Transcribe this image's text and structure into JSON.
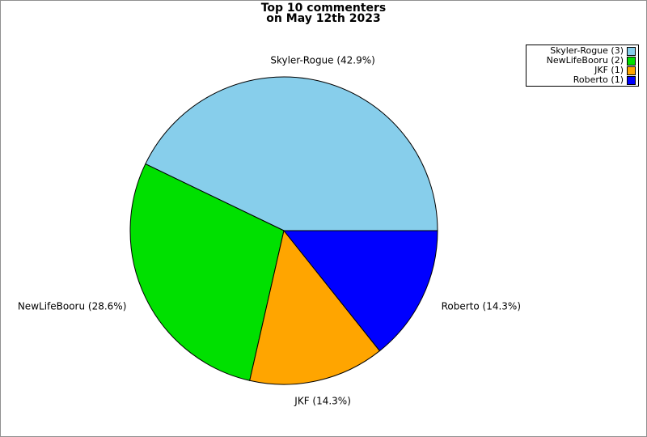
{
  "window": {
    "background": "#ffffff",
    "frame_border_color": "#909090"
  },
  "title": {
    "line1": "Top 10 commenters",
    "line2": "on May 12th 2023"
  },
  "chart_data": {
    "type": "pie",
    "title": "Top 10 commenters on May 12th 2023",
    "categories": [
      "Skyler-Rogue",
      "NewLifeBooru",
      "JKF",
      "Roberto"
    ],
    "values": [
      3,
      2,
      1,
      1
    ],
    "percentages": [
      42.9,
      28.6,
      14.3,
      14.3
    ],
    "slice_labels": [
      "Skyler-Rogue (42.9%)",
      "NewLifeBooru (28.6%)",
      "JKF (14.3%)",
      "Roberto (14.3%)"
    ],
    "colors": [
      "#87CEEB",
      "#00E000",
      "#FFA500",
      "#0000FF"
    ],
    "outline_color": "#000000",
    "start_angle_deg": 0,
    "direction": "counterclockwise",
    "legend": {
      "position": "top-right",
      "entries": [
        {
          "label": "Skyler-Rogue (3)",
          "color": "#87CEEB"
        },
        {
          "label": "NewLifeBooru (2)",
          "color": "#00E000"
        },
        {
          "label": "JKF (1)",
          "color": "#FFA500"
        },
        {
          "label": "Roberto (1)",
          "color": "#0000FF"
        }
      ]
    }
  }
}
